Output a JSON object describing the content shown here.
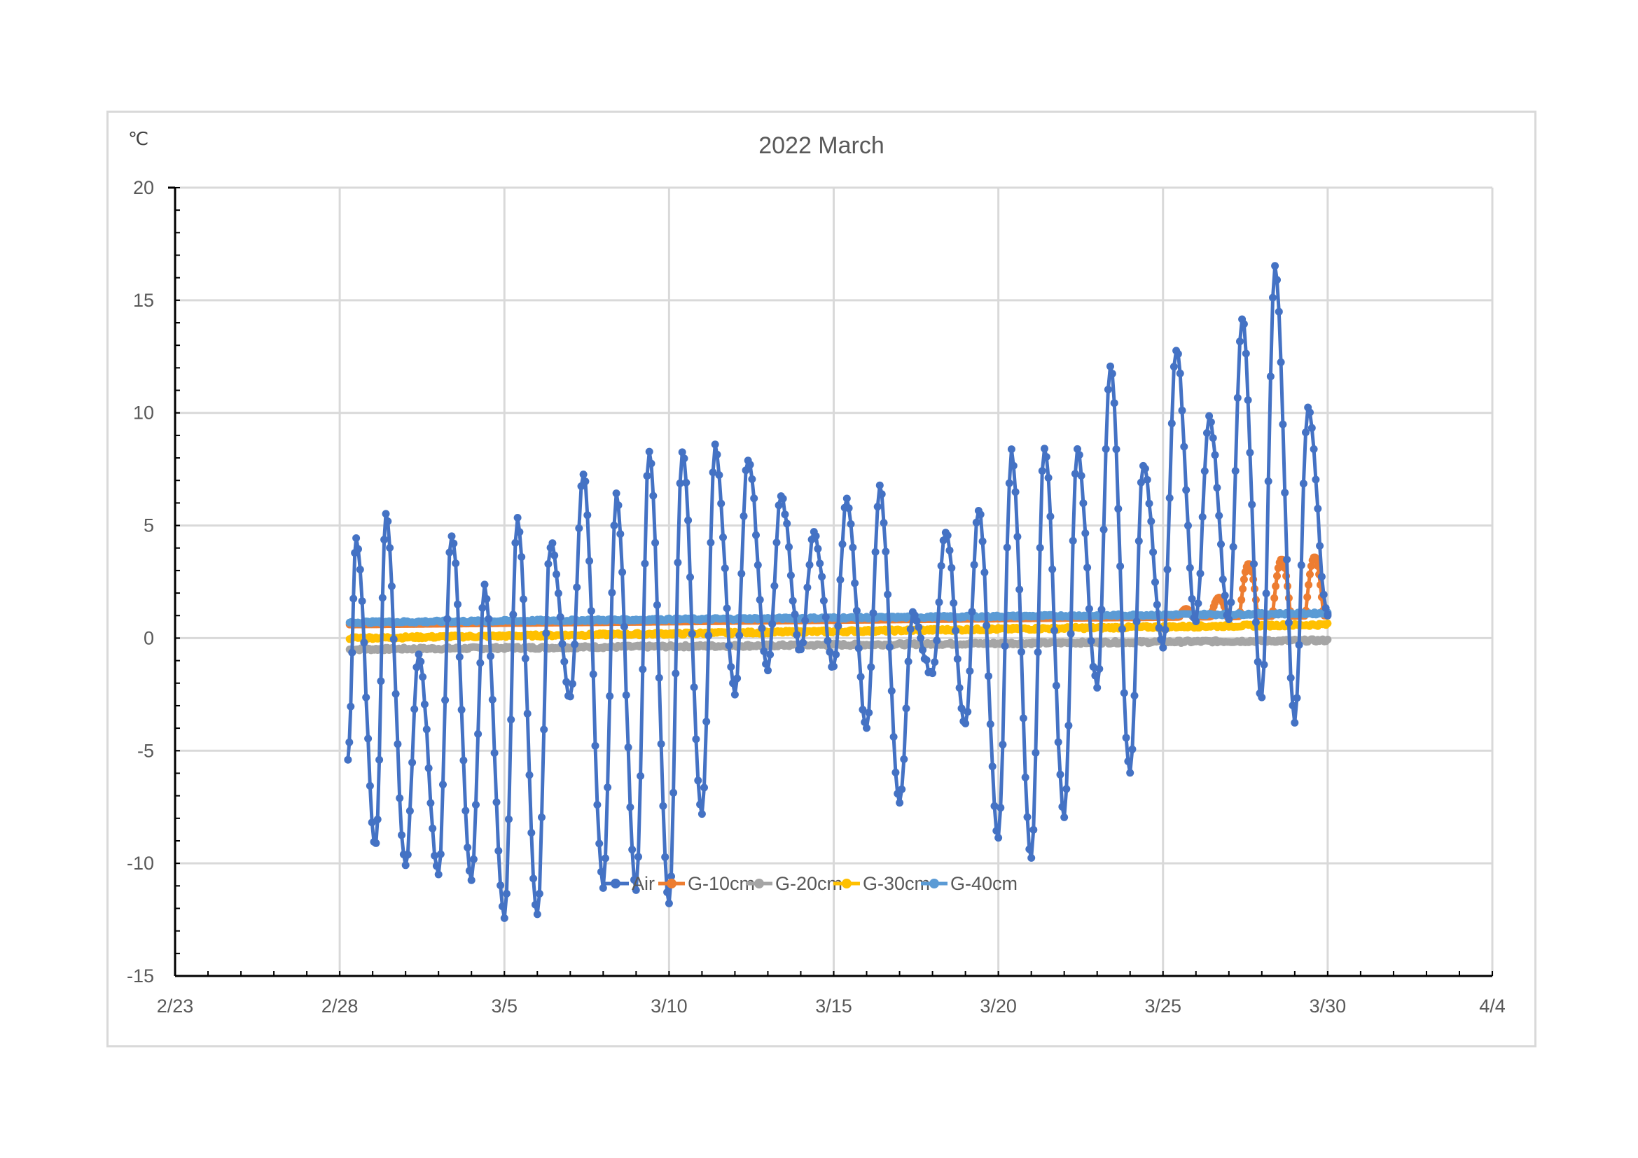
{
  "chart_data": {
    "type": "line",
    "title": "2022 March",
    "unit_label": "℃",
    "xlabel": "",
    "ylabel": "",
    "x_ticks": [
      "2/23",
      "2/28",
      "3/5",
      "3/10",
      "3/15",
      "3/20",
      "3/25",
      "3/30",
      "4/4"
    ],
    "x_tick_days": [
      0,
      5,
      10,
      15,
      20,
      25,
      30,
      35,
      40
    ],
    "xlim_days": [
      0,
      40
    ],
    "y_ticks": [
      "20",
      "15",
      "10",
      "5",
      "0",
      "-5",
      "-10",
      "-15"
    ],
    "y_tick_values": [
      20,
      15,
      10,
      5,
      0,
      -5,
      -10,
      -15
    ],
    "ylim": [
      -15,
      20
    ],
    "grid": true,
    "legend_position": "bottom-right, inside plot",
    "series": [
      {
        "name": "Air",
        "color": "#4472c4",
        "marker": "circle",
        "daily_peaks": [
          {
            "day": 5.5,
            "max": 4.4,
            "min": -9.3
          },
          {
            "day": 6.4,
            "max": 5.4,
            "min": -10.1
          },
          {
            "day": 7.4,
            "max": -0.8,
            "min": -10.5
          },
          {
            "day": 8.4,
            "max": 4.7,
            "min": -10.9
          },
          {
            "day": 9.4,
            "max": 2.2,
            "min": -12.4
          },
          {
            "day": 10.4,
            "max": 5.3,
            "min": -12.2
          },
          {
            "day": 11.4,
            "max": 4.2,
            "min": -2.6
          },
          {
            "day": 12.4,
            "max": 7.4,
            "min": -11.0
          },
          {
            "day": 13.4,
            "max": 6.3,
            "min": -11.0
          },
          {
            "day": 14.4,
            "max": 8.4,
            "min": -11.8
          },
          {
            "day": 15.4,
            "max": 8.4,
            "min": -7.9
          },
          {
            "day": 16.4,
            "max": 8.4,
            "min": -2.4
          },
          {
            "day": 17.4,
            "max": 8.0,
            "min": -1.5
          },
          {
            "day": 18.4,
            "max": 6.3,
            "min": -0.5
          },
          {
            "day": 19.4,
            "max": 4.6,
            "min": -1.3
          },
          {
            "day": 20.4,
            "max": 6.1,
            "min": -4.0
          },
          {
            "day": 21.4,
            "max": 6.6,
            "min": -7.2
          },
          {
            "day": 22.4,
            "max": 1.0,
            "min": -1.7
          },
          {
            "day": 23.4,
            "max": 4.7,
            "min": -3.9
          },
          {
            "day": 24.4,
            "max": 5.8,
            "min": -8.9
          },
          {
            "day": 25.4,
            "max": 8.2,
            "min": -9.8
          },
          {
            "day": 26.4,
            "max": 8.6,
            "min": -7.8
          },
          {
            "day": 27.4,
            "max": 8.3,
            "min": -2.1
          },
          {
            "day": 28.4,
            "max": 12.0,
            "min": -6.0
          },
          {
            "day": 29.4,
            "max": 7.8,
            "min": -0.3
          },
          {
            "day": 30.4,
            "max": 12.8,
            "min": 0.6
          },
          {
            "day": 31.4,
            "max": 9.8,
            "min": 0.9
          },
          {
            "day": 32.4,
            "max": 14.2,
            "min": -2.7
          },
          {
            "day": 33.4,
            "max": 16.4,
            "min": -3.6
          },
          {
            "day": 34.4,
            "max": 10.2,
            "min": 1.0
          }
        ]
      },
      {
        "name": "G-10cm",
        "color": "#ed7d31",
        "marker": "circle",
        "daily_peaks": [
          {
            "day": 30.7,
            "max": 1.3
          },
          {
            "day": 31.7,
            "max": 1.8
          },
          {
            "day": 32.6,
            "max": 3.3
          },
          {
            "day": 33.6,
            "max": 3.5
          },
          {
            "day": 34.6,
            "max": 3.6
          }
        ],
        "baseline": [
          {
            "day": 5.3,
            "value": 0.6
          },
          {
            "day": 35.0,
            "value": 1.0
          }
        ]
      },
      {
        "name": "G-20cm",
        "color": "#a5a5a5",
        "marker": "circle",
        "values": [
          {
            "day": 5.3,
            "value": -0.5
          },
          {
            "day": 35.0,
            "value": -0.1
          }
        ]
      },
      {
        "name": "G-30cm",
        "color": "#ffc000",
        "marker": "circle",
        "values": [
          {
            "day": 5.3,
            "value": 0.0
          },
          {
            "day": 35.0,
            "value": 0.6
          }
        ]
      },
      {
        "name": "G-40cm",
        "color": "#5b9bd5",
        "marker": "circle",
        "values": [
          {
            "day": 5.3,
            "value": 0.7
          },
          {
            "day": 35.0,
            "value": 1.1
          }
        ]
      }
    ]
  }
}
